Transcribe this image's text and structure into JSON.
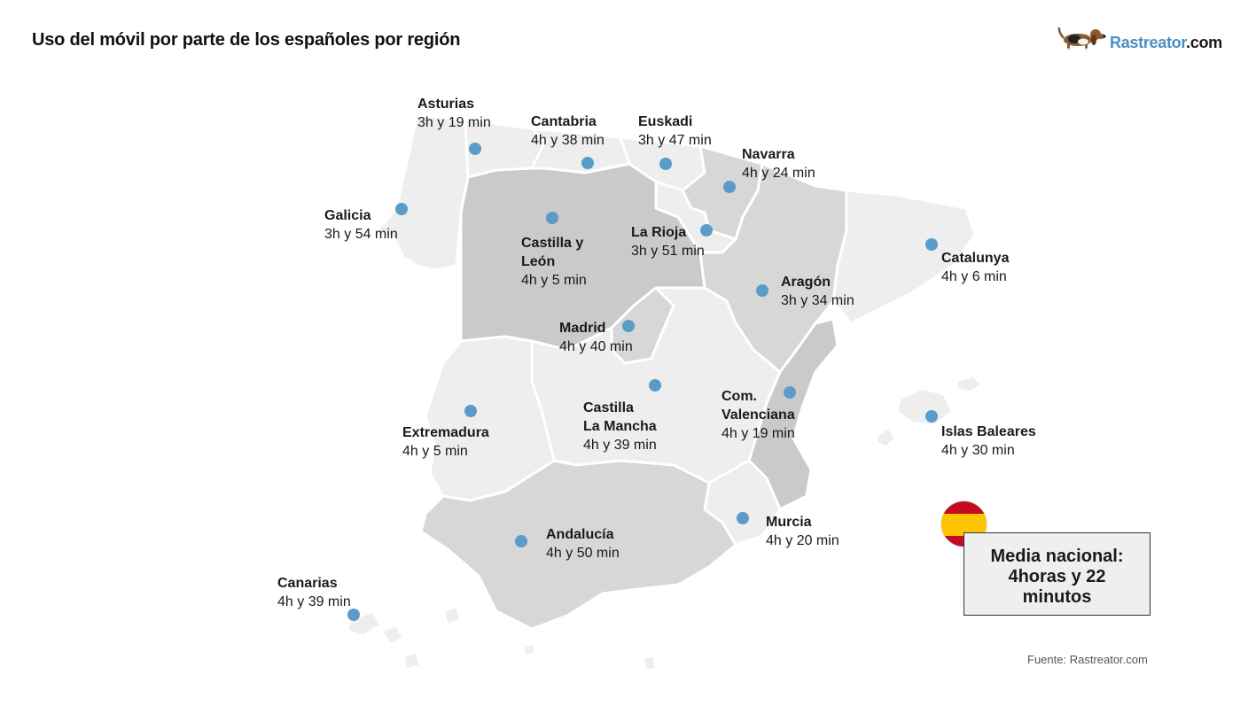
{
  "title": "Uso del móvil por parte de los españoles por región",
  "brand": {
    "name": "Rastreator",
    "suffix": ".com",
    "icon": "basset-dog-logo"
  },
  "regions": [
    {
      "id": "asturias",
      "name": "Asturias",
      "time": "3h y 19 min"
    },
    {
      "id": "cantabria",
      "name": "Cantabria",
      "time": "4h y 38 min"
    },
    {
      "id": "euskadi",
      "name": "Euskadi",
      "time": "3h y 47 min"
    },
    {
      "id": "navarra",
      "name": "Navarra",
      "time": "4h y 24 min"
    },
    {
      "id": "galicia",
      "name": "Galicia",
      "time": "3h y 54 min"
    },
    {
      "id": "castilla-leon",
      "name": "Castilla y\nLeón",
      "time": "4h y 5 min"
    },
    {
      "id": "la-rioja",
      "name": "La Rioja",
      "time": "3h y 51 min"
    },
    {
      "id": "catalunya",
      "name": "Catalunya",
      "time": "4h y 6 min"
    },
    {
      "id": "aragon",
      "name": "Aragón",
      "time": "3h y 34 min"
    },
    {
      "id": "madrid",
      "name": "Madrid",
      "time": "4h y 40 min"
    },
    {
      "id": "castilla-la-mancha",
      "name": "Castilla\nLa Mancha",
      "time": "4h y 39 min"
    },
    {
      "id": "valenciana",
      "name": "Com.\nValenciana",
      "time": "4h y 19 min"
    },
    {
      "id": "extremadura",
      "name": "Extremadura",
      "time": "4h y 5 min"
    },
    {
      "id": "baleares",
      "name": "Islas Baleares",
      "time": "4h y 30 min"
    },
    {
      "id": "andalucia",
      "name": "Andalucía",
      "time": "4h y 50 min"
    },
    {
      "id": "murcia",
      "name": "Murcia",
      "time": "4h y 20 min"
    },
    {
      "id": "canarias",
      "name": "Canarias",
      "time": "4h y 39 min"
    }
  ],
  "national_average": {
    "label": "Media nacional:",
    "value": "4horas y 22",
    "unit": "minutos",
    "flag_icon": "spain-flag-icon"
  },
  "source": "Fuente: Rastreator.com",
  "colors": {
    "marker": "#5b9bc8",
    "region_light": "#eeeeee",
    "region_mid": "#d7d7d7",
    "region_dark": "#cacaca",
    "border": "#ffffff",
    "brand_blue": "#4a8fc4",
    "flag_red": "#c60b1e",
    "flag_yellow": "#ffc400"
  }
}
